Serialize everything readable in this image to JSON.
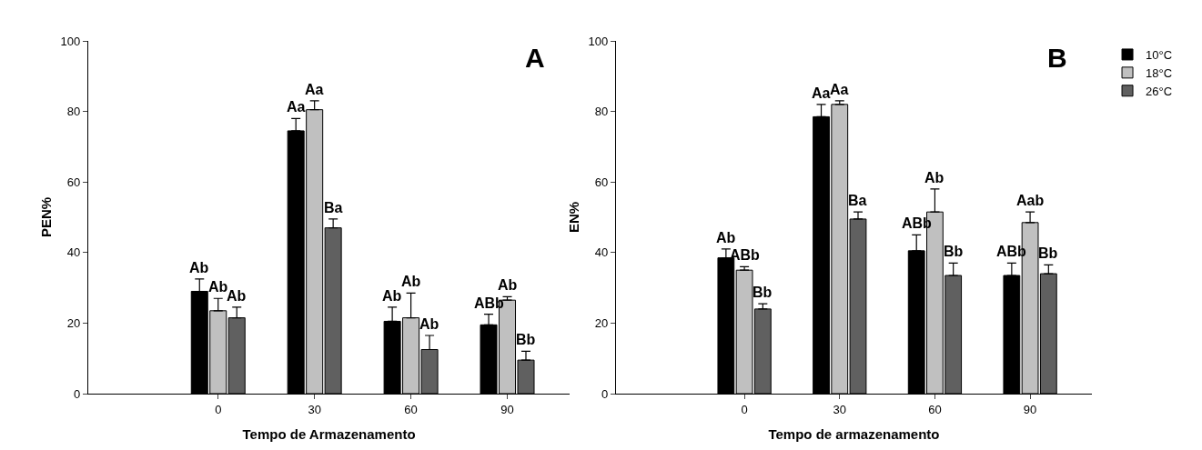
{
  "chart_data": [
    {
      "type": "bar",
      "categories": [
        "0",
        "30",
        "60",
        "90"
      ],
      "xlabel": "Tempo de Armazenamento",
      "ylabel": "PEN%",
      "ylim": [
        0,
        100
      ],
      "yticks": [
        0,
        20,
        40,
        60,
        80,
        100
      ],
      "annotations": [
        "A"
      ],
      "series": [
        {
          "color": "#000000",
          "values": [
            29,
            74.5,
            20.5,
            19.5
          ],
          "errors": [
            [
              29,
              32.5
            ],
            [
              74.5,
              78
            ],
            [
              20.5,
              24.5
            ],
            [
              19.5,
              22.5
            ]
          ],
          "value_labels": [
            "Ab",
            "Aa",
            "Ab",
            "ABb"
          ]
        },
        {
          "color": "#c0c0c0",
          "values": [
            23.5,
            80.5,
            21.5,
            26.5
          ],
          "errors": [
            [
              23.5,
              27
            ],
            [
              80.5,
              83
            ],
            [
              21.5,
              28.5
            ],
            [
              26.5,
              27.5
            ]
          ],
          "value_labels": [
            "Ab",
            "Aa",
            "Ab",
            "Ab"
          ]
        },
        {
          "color": "#606060",
          "values": [
            21.5,
            47,
            12.5,
            9.5
          ],
          "errors": [
            [
              21.5,
              24.5
            ],
            [
              47,
              49.5
            ],
            [
              12.5,
              16.5
            ],
            [
              9.5,
              12
            ]
          ],
          "value_labels": [
            "Ab",
            "Ba",
            "Ab",
            "Bb"
          ]
        }
      ]
    },
    {
      "type": "bar",
      "categories": [
        "0",
        "30",
        "60",
        "90"
      ],
      "xlabel": "Tempo de armazenamento",
      "ylabel": "EN%",
      "ylim": [
        0,
        100
      ],
      "yticks": [
        0,
        20,
        40,
        60,
        80,
        100
      ],
      "legend": "top right",
      "annotations": [
        "B"
      ],
      "series": [
        {
          "name": "10°C",
          "color": "#000000",
          "values": [
            38.5,
            78.5,
            40.5,
            33.5
          ],
          "errors": [
            [
              38.5,
              41
            ],
            [
              78.5,
              82
            ],
            [
              40.5,
              45
            ],
            [
              33.5,
              37
            ]
          ],
          "value_labels": [
            "Ab",
            "Aa",
            "ABb",
            "ABb"
          ]
        },
        {
          "name": "18°C",
          "color": "#c0c0c0",
          "values": [
            35,
            82,
            51.5,
            48.5
          ],
          "errors": [
            [
              35,
              36
            ],
            [
              82,
              83
            ],
            [
              51.5,
              58
            ],
            [
              48.5,
              51.5
            ]
          ],
          "value_labels": [
            "ABb",
            "Aa",
            "Ab",
            "Aab"
          ]
        },
        {
          "name": "26°C",
          "color": "#606060",
          "values": [
            24,
            49.5,
            33.5,
            34
          ],
          "errors": [
            [
              24,
              25.5
            ],
            [
              49.5,
              51.5
            ],
            [
              33.5,
              37
            ],
            [
              34,
              36.5
            ]
          ],
          "value_labels": [
            "Bb",
            "Ba",
            "Bb",
            "Bb"
          ]
        }
      ]
    }
  ]
}
